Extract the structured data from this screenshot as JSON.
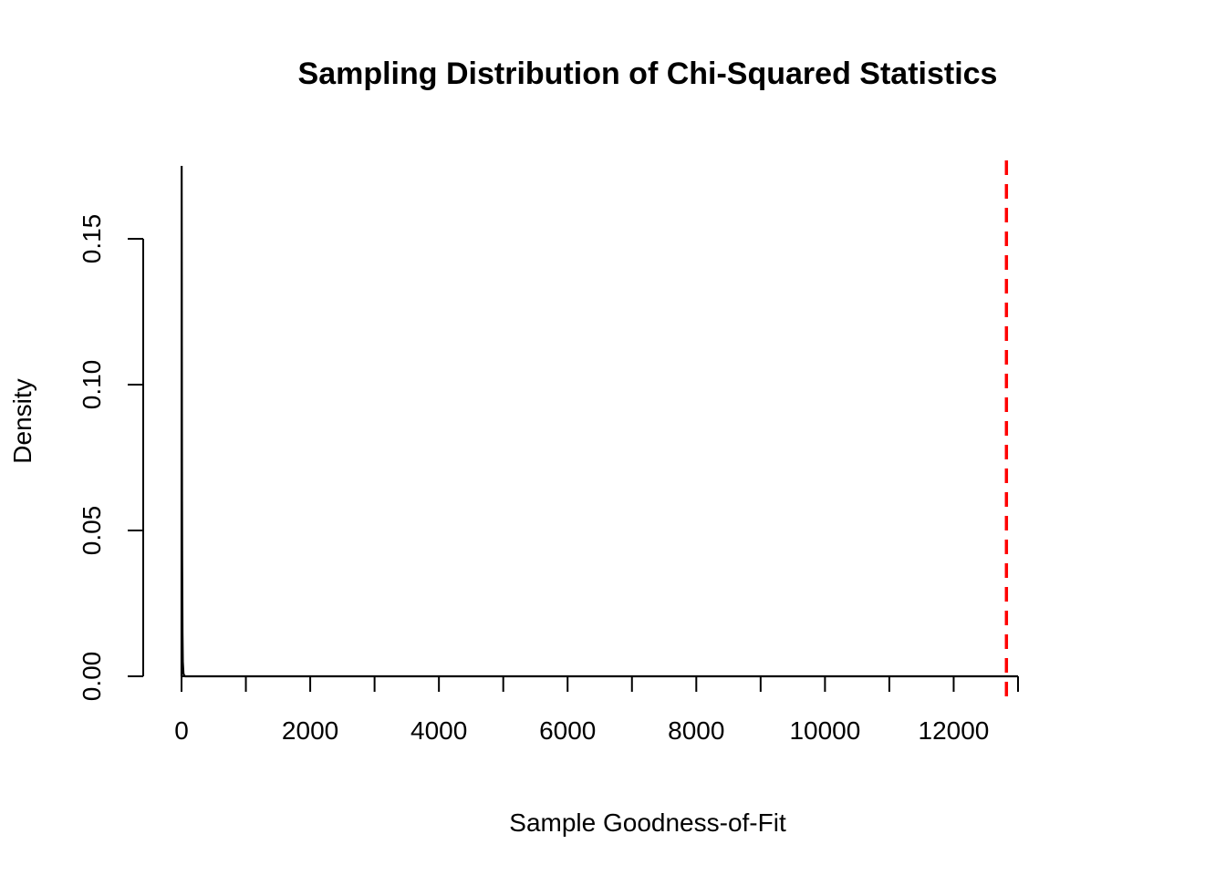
{
  "chart_data": {
    "type": "line",
    "title": "Sampling Distribution of Chi-Squared Statistics",
    "xlabel": "Sample Goodness-of-Fit",
    "ylabel": "Density",
    "xlim": [
      0,
      13000
    ],
    "ylim": [
      0,
      0.175
    ],
    "x_ticks": [
      0,
      1000,
      2000,
      3000,
      4000,
      5000,
      6000,
      7000,
      8000,
      9000,
      10000,
      11000,
      12000,
      13000
    ],
    "x_tick_labels": [
      "0",
      "",
      "2000",
      "",
      "4000",
      "",
      "6000",
      "",
      "8000",
      "",
      "10000",
      "",
      "12000",
      ""
    ],
    "y_ticks": [
      0.0,
      0.05,
      0.1,
      0.15
    ],
    "y_tick_labels": [
      "0.00",
      "0.05",
      "0.10",
      "0.15"
    ],
    "grid": false,
    "series": [
      {
        "x": [
          0,
          2,
          4,
          6,
          8,
          10,
          15,
          20,
          30,
          40,
          60,
          100,
          500,
          1000,
          5000,
          10000,
          13000
        ],
        "y": [
          0.0,
          0.175,
          0.14,
          0.09,
          0.06,
          0.04,
          0.015,
          0.005,
          0.001,
          0.0003,
          0.0,
          0.0,
          0.0,
          0.0,
          0.0,
          0.0,
          0.0
        ],
        "color": "#000000"
      }
    ],
    "reference_line": {
      "x": 12820,
      "color": "#ff0000",
      "style": "dashed"
    }
  }
}
